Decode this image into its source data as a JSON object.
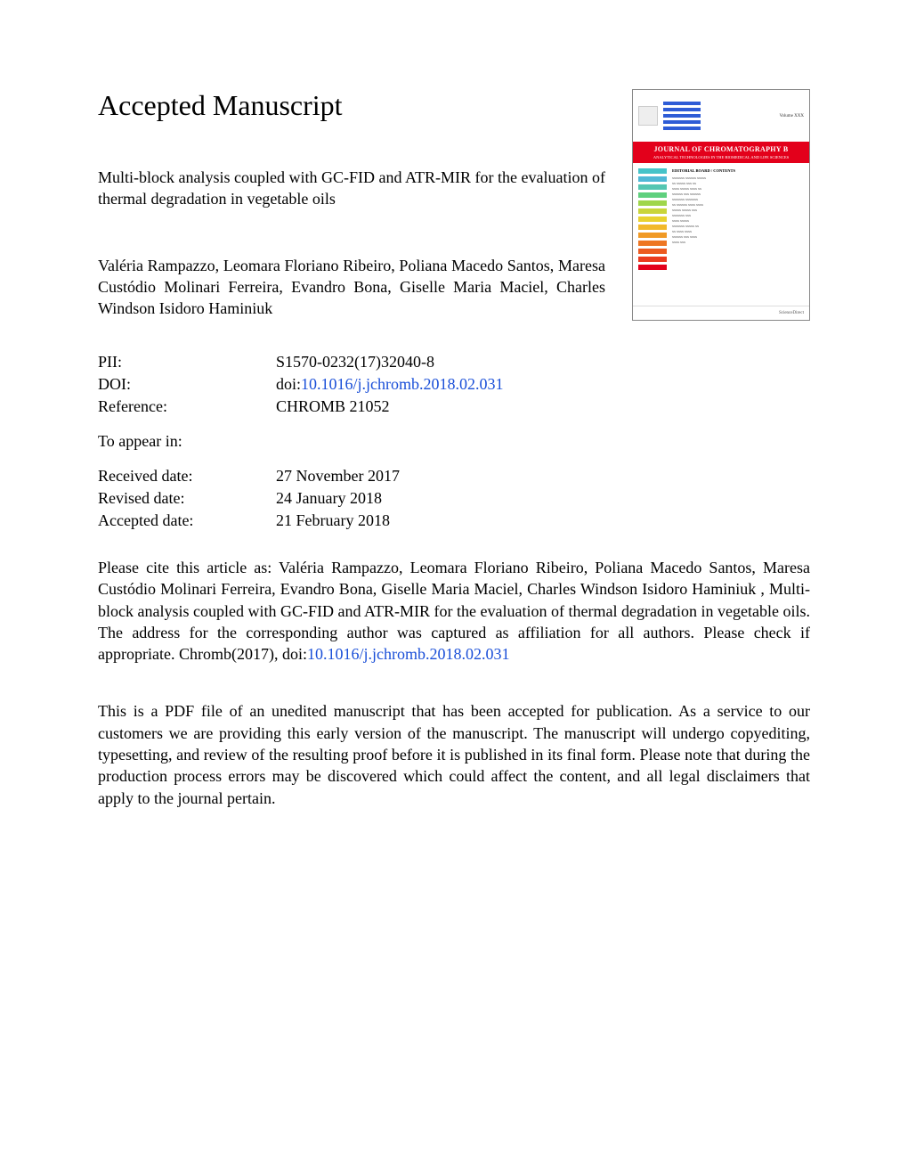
{
  "heading": "Accepted Manuscript",
  "article": {
    "title": "Multi-block analysis coupled with GC-FID and ATR-MIR for the evaluation of thermal degradation in vegetable oils",
    "authors": "Valéria Rampazzo, Leomara Floriano Ribeiro, Poliana Macedo Santos, Maresa Custódio Molinari Ferreira, Evandro Bona, Giselle Maria Maciel, Charles Windson Isidoro Haminiuk"
  },
  "meta": {
    "pii_label": "PII:",
    "pii": "S1570-0232(17)32040-8",
    "doi_label": "DOI:",
    "doi_prefix": "doi:",
    "doi": "10.1016/j.jchromb.2018.02.031",
    "ref_label": "Reference:",
    "ref": "CHROMB 21052",
    "appear_label": "To appear in:",
    "appear": "",
    "received_label": "Received date:",
    "received": "27 November 2017",
    "revised_label": "Revised date:",
    "revised": "24 January 2018",
    "accepted_label": "Accepted date:",
    "accepted": "21 February 2018"
  },
  "cite": {
    "prefix": "Please cite this article as: Valéria Rampazzo, Leomara Floriano Ribeiro, Poliana Macedo Santos, Maresa Custódio Molinari Ferreira, Evandro Bona, Giselle Maria Maciel, Charles Windson Isidoro Haminiuk , Multi-block analysis coupled with GC-FID and ATR-MIR for the evaluation of thermal degradation in vegetable oils. The address for the corresponding author was captured as affiliation for all authors. Please check if appropriate. Chromb(2017), doi:",
    "doi": "10.1016/j.jchromb.2018.02.031"
  },
  "disclaimer": "This is a PDF file of an unedited manuscript that has been accepted for publication. As a service to our customers we are providing this early version of the manuscript. The manuscript will undergo copyediting, typesetting, and review of the resulting proof before it is published in its final form. Please note that during the production process errors may be discovered which could affect the content, and all legal disclaimers that apply to the journal pertain.",
  "cover": {
    "volume": "Volume XXX",
    "journal_name": "JOURNAL OF CHROMATOGRAPHY B",
    "subtitle": "ANALYTICAL TECHNOLOGIES IN THE BIOMEDICAL AND LIFE SCIENCES",
    "stripe_colors": [
      "#45c3c9",
      "#4fb8d6",
      "#54c6b2",
      "#5fd07e",
      "#9fd64b",
      "#c9d53a",
      "#e9d22f",
      "#f2b92a",
      "#f09a26",
      "#ee7623",
      "#ec5a20",
      "#ea3a1e",
      "#e3001b"
    ],
    "toc_header": "EDITORIAL BOARD / CONTENTS",
    "toc_lines": [
      "xxxxxxx xxxxxx xxxxx",
      "xx xxxxx xxx xx",
      "xxxx xxxxx xxxx xx",
      "xxxxxx xxx xxxxxx",
      "xxxxxxx xxxxxxx",
      "xx xxxxxx xxxx xxxx",
      "xxxxx xxxxx xxx",
      "xxxxxxx xxx",
      "xxxx xxxxx",
      "xxxxxxx xxxxx xx",
      "xx xxxx xxxx",
      "xxxxxx xxx xxxx",
      "xxxx xxx"
    ],
    "publisher": "ScienceDirect"
  }
}
